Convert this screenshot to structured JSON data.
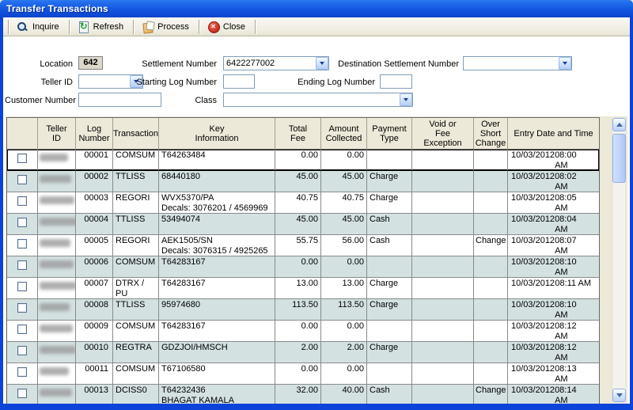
{
  "window": {
    "title": "Transfer Transactions"
  },
  "toolbar": {
    "inquire_label": "Inquire",
    "refresh_label": "Refresh",
    "process_label": "Process",
    "close_label": "Close"
  },
  "form": {
    "location_label": "Location",
    "location_value": "642",
    "settlement_label": "Settlement Number",
    "settlement_value": "6422277002",
    "destination_label": "Destination Settlement Number",
    "destination_value": "",
    "teller_label": "Teller ID",
    "teller_value": "",
    "starting_log_label": "Starting Log Number",
    "starting_log_value": "",
    "ending_log_label": "Ending Log Number",
    "ending_log_value": "",
    "customer_label": "Customer Number",
    "customer_value": "",
    "class_label": "Class",
    "class_value": ""
  },
  "colors": {
    "window_border_blue": "#0c43d9",
    "row_alt_teal": "#d3e1e1",
    "header_beige": "#ece9d8",
    "close_red": "#d5382c",
    "refresh_green": "#1f9e2c"
  },
  "table": {
    "columns": [
      "",
      "Teller\nID",
      "Log\nNumber",
      "Transaction",
      "Key\nInformation",
      "Total\nFee",
      "Amount\nCollected",
      "Payment\nType",
      "Void or\nFee\nException",
      "Over\nShort\nChange",
      "Entry Date and Time"
    ],
    "rows": [
      {
        "teller_id": "[redacted]",
        "log": "00001",
        "transaction": "COMSUM",
        "key1": "T64263484",
        "key2": "",
        "fee": "0.00",
        "collected": "0.00",
        "payment": "",
        "void_exception": "",
        "over_short": "",
        "date": "10/03/2012",
        "time": "08:00 AM",
        "selected": true
      },
      {
        "teller_id": "[redacted]",
        "log": "00002",
        "transaction": "TTLISS",
        "key1": "68440180",
        "key2": "",
        "fee": "45.00",
        "collected": "45.00",
        "payment": "Charge",
        "void_exception": "",
        "over_short": "",
        "date": "10/03/2012",
        "time": "08:02 AM",
        "selected": false
      },
      {
        "teller_id": "[redacted]",
        "log": "00003",
        "transaction": "REGORI",
        "key1": "WVX5370/PA",
        "key2": "Decals: 3076201 / 4569969",
        "fee": "40.75",
        "collected": "40.75",
        "payment": "Charge",
        "void_exception": "",
        "over_short": "",
        "date": "10/03/2012",
        "time": "08:05 AM",
        "selected": false
      },
      {
        "teller_id": "[redacted]",
        "log": "00004",
        "transaction": "TTLISS",
        "key1": "53494074",
        "key2": "",
        "fee": "45.00",
        "collected": "45.00",
        "payment": "Cash",
        "void_exception": "",
        "over_short": "",
        "date": "10/03/2012",
        "time": "08:04 AM",
        "selected": false
      },
      {
        "teller_id": "[redacted]",
        "log": "00005",
        "transaction": "REGORI",
        "key1": "AEK1505/SN",
        "key2": "Decals: 3076315 / 4925265",
        "fee": "55.75",
        "collected": "56.00",
        "payment": "Cash",
        "void_exception": "",
        "over_short": "Change",
        "date": "10/03/2012",
        "time": "08:07 AM",
        "selected": false
      },
      {
        "teller_id": "[redacted]",
        "log": "00006",
        "transaction": "COMSUM",
        "key1": "T64283167",
        "key2": "",
        "fee": "0.00",
        "collected": "0.00",
        "payment": "",
        "void_exception": "",
        "over_short": "",
        "date": "10/03/2012",
        "time": "08:10 AM",
        "selected": false
      },
      {
        "teller_id": "[redacted]",
        "log": "00007",
        "transaction": "DTRX / PU",
        "key1": "T64283167",
        "key2": "",
        "fee": "13.00",
        "collected": "13.00",
        "payment": "Charge",
        "void_exception": "",
        "over_short": "",
        "date": "10/03/2012",
        "time": "08:11 AM",
        "selected": false
      },
      {
        "teller_id": "[redacted]",
        "log": "00008",
        "transaction": "TTLISS",
        "key1": "95974680",
        "key2": "",
        "fee": "113.50",
        "collected": "113.50",
        "payment": "Charge",
        "void_exception": "",
        "over_short": "",
        "date": "10/03/2012",
        "time": "08:10 AM",
        "selected": false
      },
      {
        "teller_id": "[redacted]",
        "log": "00009",
        "transaction": "COMSUM",
        "key1": "T64283167",
        "key2": "",
        "fee": "0.00",
        "collected": "0.00",
        "payment": "",
        "void_exception": "",
        "over_short": "",
        "date": "10/03/2012",
        "time": "08:12 AM",
        "selected": false
      },
      {
        "teller_id": "[redacted]",
        "log": "00010",
        "transaction": "REGTRA",
        "key1": "GDZJOI/HMSCH",
        "key2": "",
        "fee": "2.00",
        "collected": "2.00",
        "payment": "Charge",
        "void_exception": "",
        "over_short": "",
        "date": "10/03/2012",
        "time": "08:12 AM",
        "selected": false
      },
      {
        "teller_id": "[redacted]",
        "log": "00011",
        "transaction": "COMSUM",
        "key1": "T67106580",
        "key2": "",
        "fee": "0.00",
        "collected": "0.00",
        "payment": "",
        "void_exception": "",
        "over_short": "",
        "date": "10/03/2012",
        "time": "08:13 AM",
        "selected": false
      },
      {
        "teller_id": "[redacted]",
        "log": "00013",
        "transaction": "DCISS0",
        "key1": "T64232436",
        "key2": "BHAGAT KAMALA",
        "fee": "32.00",
        "collected": "40.00",
        "payment": "Cash",
        "void_exception": "",
        "over_short": "Change",
        "date": "10/03/2012",
        "time": "08:14 AM",
        "selected": false
      }
    ]
  }
}
